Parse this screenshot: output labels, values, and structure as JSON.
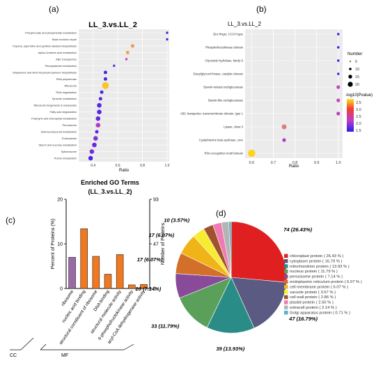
{
  "panels": {
    "a": "(a)",
    "b": "(b)",
    "c": "(c)",
    "d": "(d)"
  },
  "colors": {
    "ratio_low": "#2a1cf0",
    "ratio_mid": "#c040c0",
    "ratio_high": "#ffd21e",
    "bar_purple": "#9a6aa6",
    "bar_orange": "#f07820"
  },
  "chart_data": [
    {
      "id": "a",
      "type": "scatter",
      "title": "LL_3.vs.LL_2",
      "xlabel": "Ratio",
      "xlim": [
        0.3,
        1.0
      ],
      "xticks": [
        "0.4",
        "0.6",
        "0.8",
        "1.0"
      ],
      "points": [
        {
          "term": "Phosphonate and phosphinate metabolism",
          "ratio": 1.0,
          "pvalue_level": 0.1,
          "size": 1
        },
        {
          "term": "Base excision repair",
          "ratio": 1.0,
          "pvalue_level": 0.1,
          "size": 1
        },
        {
          "term": "Tropane, piperidine and pyridine alkaloid biosynthesis",
          "ratio": 0.72,
          "pvalue_level": 0.8,
          "size": 2
        },
        {
          "term": "alpha-Linolenic acid metabolism",
          "ratio": 0.68,
          "pvalue_level": 0.85,
          "size": 2
        },
        {
          "term": "ABC transporters",
          "ratio": 0.67,
          "pvalue_level": 0.5,
          "size": 1
        },
        {
          "term": "Phenylalanine metabolism",
          "ratio": 0.57,
          "pvalue_level": 0.2,
          "size": 1
        },
        {
          "term": "Ubiquinone and other terpenoid-quinone biosynthesis",
          "ratio": 0.5,
          "pvalue_level": 0.1,
          "size": 2
        },
        {
          "term": "RNA polymerase",
          "ratio": 0.5,
          "pvalue_level": 0.1,
          "size": 2
        },
        {
          "term": "Ribosome",
          "ratio": 0.5,
          "pvalue_level": 0.95,
          "size": 5
        },
        {
          "term": "RNA degradation",
          "ratio": 0.47,
          "pvalue_level": 0.1,
          "size": 2
        },
        {
          "term": "Tyrosine metabolism",
          "ratio": 0.46,
          "pvalue_level": 0.15,
          "size": 2
        },
        {
          "term": "Ribosome biogenesis in eukaryotes",
          "ratio": 0.45,
          "pvalue_level": 0.15,
          "size": 3
        },
        {
          "term": "Fatty acid degradation",
          "ratio": 0.45,
          "pvalue_level": 0.15,
          "size": 3
        },
        {
          "term": "Porphyrin and chlorophyll metabolism",
          "ratio": 0.44,
          "pvalue_level": 0.2,
          "size": 3
        },
        {
          "term": "Peroxisome",
          "ratio": 0.44,
          "pvalue_level": 0.45,
          "size": 3
        },
        {
          "term": "Selenocompound metabolism",
          "ratio": 0.43,
          "pvalue_level": 0.15,
          "size": 2
        },
        {
          "term": "Endocytosis",
          "ratio": 0.42,
          "pvalue_level": 0.3,
          "size": 3
        },
        {
          "term": "Starch and sucrose metabolism",
          "ratio": 0.41,
          "pvalue_level": 0.2,
          "size": 3
        },
        {
          "term": "Spliceosome",
          "ratio": 0.39,
          "pvalue_level": 0.25,
          "size": 3
        },
        {
          "term": "Purine metabolism",
          "ratio": 0.38,
          "pvalue_level": 0.1,
          "size": 3
        }
      ]
    },
    {
      "id": "b",
      "type": "scatter",
      "title": "LL_3.vs.LL_2",
      "xlabel": "Ratio",
      "xlim": [
        0.57,
        1.02
      ],
      "xticks": [
        "0.6",
        "0.7",
        "0.8",
        "0.9",
        "1.0"
      ],
      "size_legend_title": "Number",
      "size_legend": [
        "5",
        "10",
        "15",
        "20"
      ],
      "color_legend_title": "-log10(Pvalue)",
      "color_legend_ticks": [
        "3.5",
        "3.0",
        "2.5",
        "2.0",
        "1.5"
      ],
      "points": [
        {
          "term": "Zinc finger, CCCH-type",
          "ratio": 1.0,
          "pvalue": 1.5,
          "size": 1
        },
        {
          "term": "Phosphofructokinase domain",
          "ratio": 1.0,
          "pvalue": 1.5,
          "size": 1
        },
        {
          "term": "Glycoside hydrolase, family 9",
          "ratio": 1.0,
          "pvalue": 1.6,
          "size": 1
        },
        {
          "term": "Diacylglycerol kinase, catalytic domain",
          "ratio": 1.0,
          "pvalue": 1.6,
          "size": 1
        },
        {
          "term": "Barwin-related endoglucanase",
          "ratio": 1.0,
          "pvalue": 2.6,
          "size": 2
        },
        {
          "term": "Barwin-like endoglucanase",
          "ratio": 1.0,
          "pvalue": 2.6,
          "size": 2
        },
        {
          "term": "ABC transporter, transmembrane domain, type 1",
          "ratio": 1.0,
          "pvalue": 2.5,
          "size": 2
        },
        {
          "term": "Lipase, class 3",
          "ratio": 0.75,
          "pvalue": 3.0,
          "size": 3
        },
        {
          "term": "Cystathionine beta-synthase, core",
          "ratio": 0.75,
          "pvalue": 2.4,
          "size": 2
        },
        {
          "term": "RNA recognition motif domain",
          "ratio": 0.6,
          "pvalue": 3.6,
          "size": 5
        }
      ]
    },
    {
      "id": "c",
      "type": "bar",
      "title": "Enriched GO Terms",
      "subtitle": "(LL_3.vs.LL_2)",
      "ylabel": "Percent of Proteins (%)",
      "ylabel_right": "Number of Proteins",
      "ylim": [
        0,
        20
      ],
      "yticks": [
        "0",
        "10",
        "20"
      ],
      "yticks_right": [
        "0",
        "47",
        "93"
      ],
      "categories": [
        "ribosome",
        "nucleic acid binding",
        "structural constituent of ribosome",
        "DNA binding",
        "structural molecule activity",
        "6-phosphofructokinase activity",
        "acyl-CoA dehydrogenase activity"
      ],
      "values": [
        7.0,
        13.4,
        7.2,
        3.2,
        7.6,
        0.8,
        0.9
      ],
      "groups": [
        {
          "name": "CC",
          "categories": [
            "ribosome"
          ]
        },
        {
          "name": "MF",
          "categories": [
            "nucleic acid binding",
            "structural constituent of ribosome",
            "DNA binding",
            "structural molecule activity",
            "6-phosphofructokinase activity",
            "acyl-CoA dehydrogenase activity"
          ]
        }
      ]
    },
    {
      "id": "d",
      "type": "pie",
      "slices": [
        {
          "name": "chloroplast protein",
          "legend": "chloroplast protein  ( 26.43 % )",
          "value": 26.43,
          "label": "74 (26.43%)",
          "color": "#e02020"
        },
        {
          "name": "cytoplasm protein",
          "legend": "cytoplasm protein  ( 16.79 % )",
          "value": 16.79,
          "label": "47 (16.79%)",
          "color": "#5a5a82"
        },
        {
          "name": "mitochondrion protein",
          "legend": "mitochondrion protein  ( 13.93 % )",
          "value": 13.93,
          "label": "39 (13.93%)",
          "color": "#2a8c86"
        },
        {
          "name": "nucleus protein",
          "legend": "nucleus protein  ( 11.79 % )",
          "value": 11.79,
          "label": "33 (11.79%)",
          "color": "#5aa05a"
        },
        {
          "name": "peroxisome protein",
          "legend": "peroxisome protein  ( 7.14 % )",
          "value": 7.14,
          "label": "20 (7.14%)",
          "color": "#8a4a9a"
        },
        {
          "name": "endoplasmic reticulum protein",
          "legend": "endoplasmic reticulum protein  ( 6.07 % )",
          "value": 6.07,
          "label": "17 (6.07%)",
          "color": "#d2702a"
        },
        {
          "name": "cell membrane protein",
          "legend": "cell membrane protein  ( 6.07 % )",
          "value": 6.07,
          "label": "17 (6.07%)",
          "color": "#f0b418"
        },
        {
          "name": "vacuole protein",
          "legend": "vacuole protein  ( 3.57 % )",
          "value": 3.57,
          "label": "10 (3.57%)",
          "color": "#f6ec30"
        },
        {
          "name": "cell wall protein",
          "legend": "cell wall protein  ( 2.86 % )",
          "value": 2.86,
          "label": "",
          "color": "#a0522d"
        },
        {
          "name": "plastid protein",
          "legend": "plastid protein  ( 2.50 % )",
          "value": 2.5,
          "label": "",
          "color": "#f07ab4"
        },
        {
          "name": "extracell protein",
          "legend": "extracell protein  ( 2.14 % )",
          "value": 2.14,
          "label": "",
          "color": "#b4b4b4"
        },
        {
          "name": "Golgi apparatus protein",
          "legend": "Golgi apparatus protein  ( 0.71 % )",
          "value": 0.71,
          "label": "",
          "color": "#56b4c8"
        }
      ]
    }
  ]
}
